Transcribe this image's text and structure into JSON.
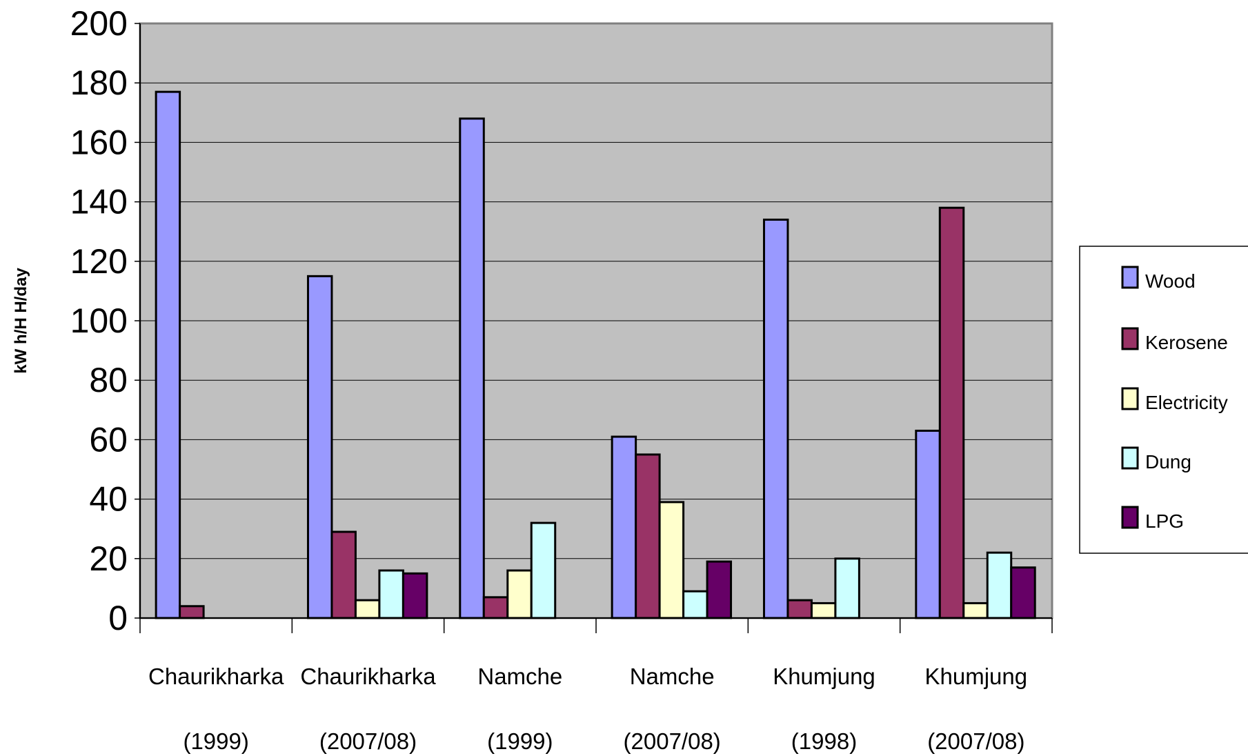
{
  "chart_data": {
    "type": "bar",
    "ylabel": "kW h/H H/day",
    "xlabel": "",
    "ylim": [
      0,
      200
    ],
    "yticks": [
      0,
      20,
      40,
      60,
      80,
      100,
      120,
      140,
      160,
      180,
      200
    ],
    "grid": true,
    "legend_position": "right",
    "categories": [
      {
        "name": "Chaurikharka",
        "period": "(1999)"
      },
      {
        "name": "Chaurikharka",
        "period": "(2007/08)"
      },
      {
        "name": "Namche",
        "period": "(1999)"
      },
      {
        "name": "Namche",
        "period": "(2007/08)"
      },
      {
        "name": "Khumjung",
        "period": "(1998)"
      },
      {
        "name": "Khumjung",
        "period": "(2007/08)"
      }
    ],
    "series": [
      {
        "name": "Wood",
        "color": "#9999ff",
        "values": [
          177,
          115,
          168,
          61,
          134,
          63
        ]
      },
      {
        "name": "Kerosene",
        "color": "#993366",
        "values": [
          4,
          29,
          7,
          55,
          6,
          138
        ]
      },
      {
        "name": "Electricity",
        "color": "#ffffcc",
        "values": [
          0,
          6,
          16,
          39,
          5,
          5
        ]
      },
      {
        "name": "Dung",
        "color": "#ccffff",
        "values": [
          0,
          16,
          32,
          9,
          20,
          22
        ]
      },
      {
        "name": "LPG",
        "color": "#660066",
        "values": [
          0,
          15,
          0,
          19,
          0,
          17
        ]
      }
    ]
  }
}
